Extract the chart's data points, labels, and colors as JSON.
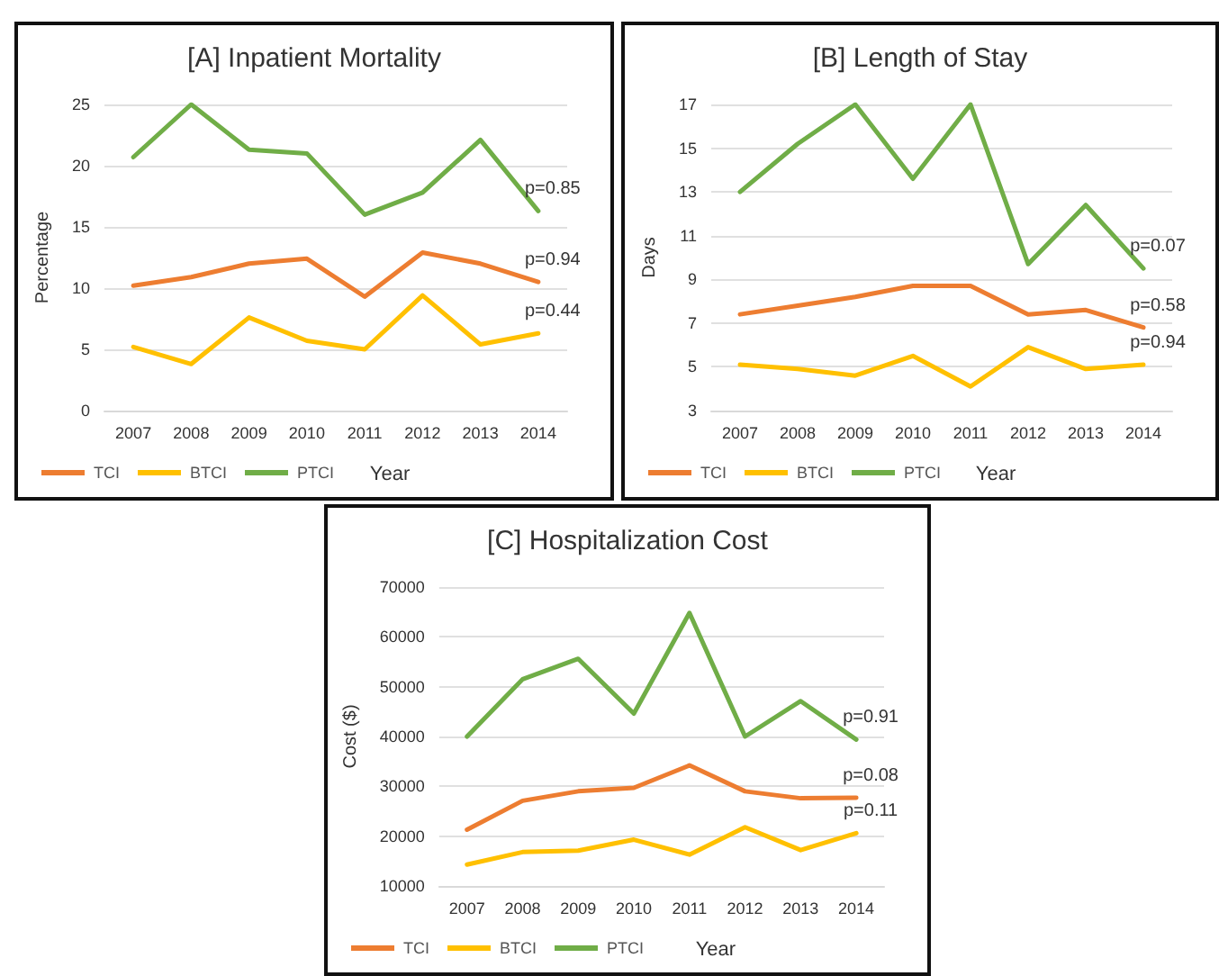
{
  "chart_data": [
    {
      "type": "line",
      "title": "[A] Inpatient Mortality",
      "xlabel": "Year",
      "ylabel": "Percentage",
      "categories": [
        "2007",
        "2008",
        "2009",
        "2010",
        "2011",
        "2012",
        "2013",
        "2014"
      ],
      "series": [
        {
          "name": "TCI",
          "color": "#ed7d31",
          "values": [
            10.2,
            10.9,
            12.0,
            12.4,
            9.3,
            12.9,
            12.0,
            10.5
          ]
        },
        {
          "name": "BTCI",
          "color": "#ffc000",
          "values": [
            5.2,
            3.8,
            7.6,
            5.7,
            5.0,
            9.4,
            5.4,
            6.3
          ]
        },
        {
          "name": "PTCI",
          "color": "#70ad47",
          "values": [
            20.7,
            25.0,
            21.3,
            21.0,
            16.0,
            17.8,
            22.1,
            16.3
          ]
        }
      ],
      "ylim": [
        0,
        25
      ],
      "yticks": [
        0,
        5,
        10,
        15,
        20,
        25
      ],
      "grid": "y",
      "legend": "bottom left",
      "marker": "none",
      "line_style": "solid",
      "annotations": [
        {
          "text": "p=0.85",
          "x": "2014",
          "y": 16.3
        },
        {
          "text": "p=0.94",
          "x": "2014",
          "y": 10.5
        },
        {
          "text": "p=0.44",
          "x": "2014",
          "y": 6.3
        }
      ]
    },
    {
      "type": "line",
      "title": "[B] Length of Stay",
      "xlabel": "Year",
      "ylabel": "Days",
      "categories": [
        "2007",
        "2008",
        "2009",
        "2010",
        "2011",
        "2012",
        "2013",
        "2014"
      ],
      "series": [
        {
          "name": "TCI",
          "color": "#ed7d31",
          "values": [
            7.4,
            7.8,
            8.2,
            8.7,
            8.7,
            7.4,
            7.6,
            6.8
          ]
        },
        {
          "name": "BTCI",
          "color": "#ffc000",
          "values": [
            5.1,
            4.9,
            4.6,
            5.5,
            4.1,
            5.9,
            4.9,
            5.1
          ]
        },
        {
          "name": "PTCI",
          "color": "#70ad47",
          "values": [
            13.0,
            15.2,
            17.0,
            13.6,
            17.0,
            9.7,
            12.4,
            9.5
          ]
        }
      ],
      "ylim": [
        3,
        17
      ],
      "yticks": [
        3,
        5,
        7,
        9,
        11,
        13,
        15,
        17
      ],
      "grid": "y",
      "legend": "bottom left",
      "marker": "none",
      "line_style": "solid",
      "annotations": [
        {
          "text": "p=0.07",
          "x": "2014",
          "y": 9.5
        },
        {
          "text": "p=0.58",
          "x": "2014",
          "y": 6.8
        },
        {
          "text": "p=0.94",
          "x": "2014",
          "y": 5.1
        }
      ]
    },
    {
      "type": "line",
      "title": "[C] Hospitalization Cost",
      "xlabel": "Year",
      "ylabel": "Cost ($)",
      "categories": [
        "2007",
        "2008",
        "2009",
        "2010",
        "2011",
        "2012",
        "2013",
        "2014"
      ],
      "series": [
        {
          "name": "TCI",
          "color": "#ed7d31",
          "values": [
            21300,
            27100,
            29000,
            29700,
            34200,
            29000,
            27600,
            27700
          ]
        },
        {
          "name": "BTCI",
          "color": "#ffc000",
          "values": [
            14300,
            16800,
            17100,
            19300,
            16300,
            21800,
            17200,
            20600
          ]
        },
        {
          "name": "PTCI",
          "color": "#70ad47",
          "values": [
            40000,
            51500,
            55600,
            44600,
            64800,
            40000,
            47100,
            39400
          ]
        }
      ],
      "ylim": [
        10000,
        70000
      ],
      "yticks": [
        10000,
        20000,
        30000,
        40000,
        50000,
        60000,
        70000
      ],
      "grid": "y",
      "legend": "bottom left",
      "marker": "none",
      "line_style": "solid",
      "annotations": [
        {
          "text": "p=0.91",
          "x": "2014",
          "y": 39400
        },
        {
          "text": "p=0.08",
          "x": "2014",
          "y": 27700
        },
        {
          "text": "p=0.11",
          "x": "2014",
          "y": 20600
        }
      ]
    }
  ]
}
